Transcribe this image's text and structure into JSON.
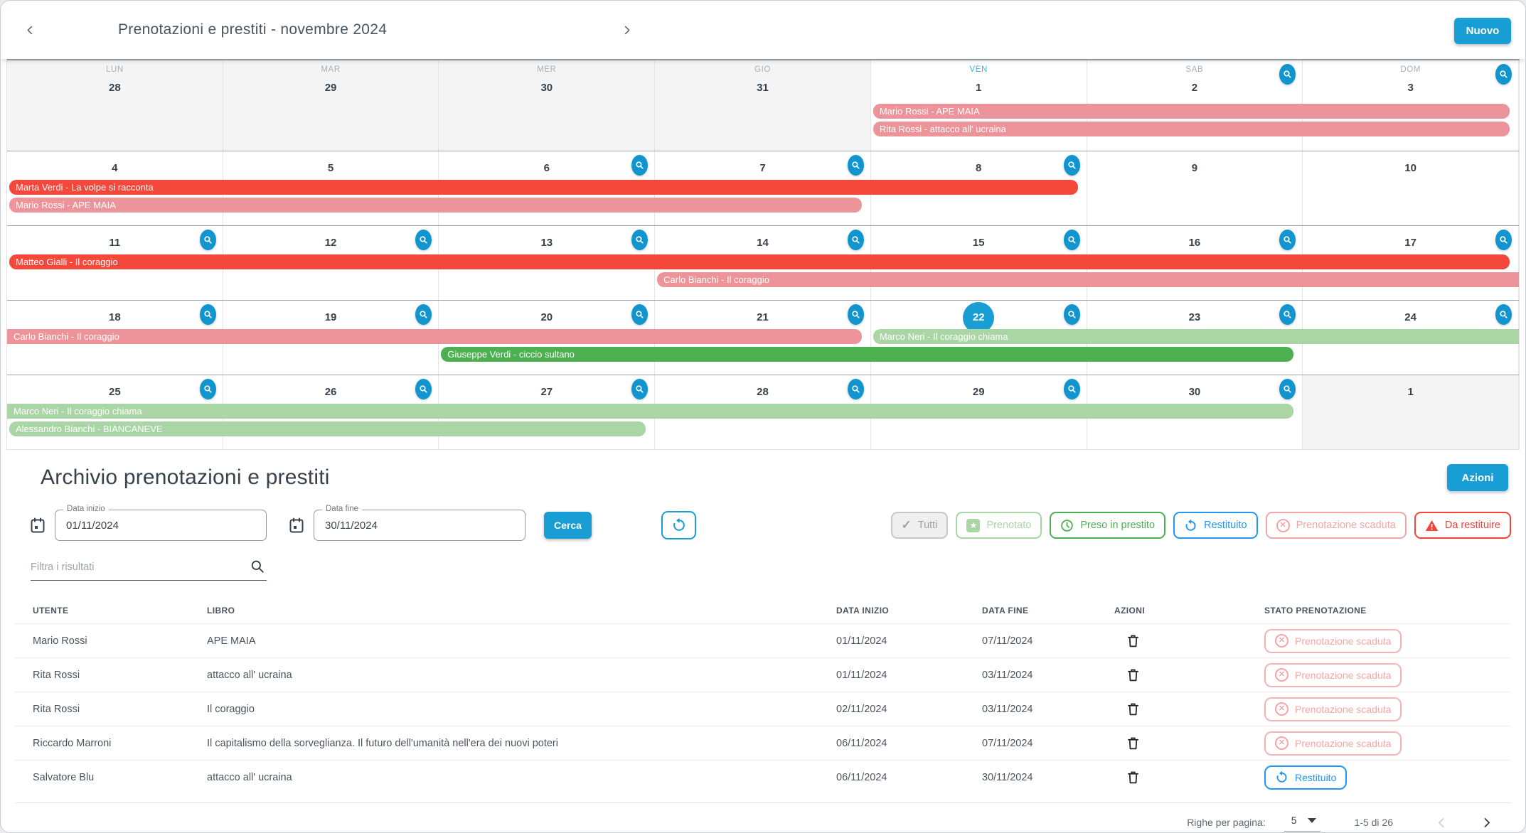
{
  "colors": {
    "red": "#f4483b",
    "pink": "#ec949a",
    "green": "#4caf50",
    "light_green": "#a9d6a4",
    "accent": "#189dd4"
  },
  "icons": {
    "check": "✓",
    "star": "★",
    "x": "✕"
  },
  "header": {
    "title": "Prenotazioni e prestiti - novembre 2024",
    "new_button": "Nuovo"
  },
  "calendar": {
    "weekday_labels": [
      "LUN",
      "MAR",
      "MER",
      "GIO",
      "VEN",
      "SAB",
      "DOM"
    ],
    "weeks": [
      {
        "days": [
          {
            "num": "28",
            "other": true
          },
          {
            "num": "29",
            "other": true
          },
          {
            "num": "30",
            "other": true
          },
          {
            "num": "31",
            "other": true
          },
          {
            "num": "1"
          },
          {
            "num": "2",
            "zoom": true
          },
          {
            "num": "3",
            "zoom": true
          }
        ],
        "events": [
          {
            "row": 0,
            "start": 4,
            "end": 7,
            "label": "Mario Rossi - APE MAIA",
            "color": "pink",
            "rl": true,
            "rr": true
          },
          {
            "row": 1,
            "start": 4,
            "end": 7,
            "label": "Rita Rossi - attacco all' ucraina",
            "color": "pink",
            "rl": true,
            "rr": true
          }
        ]
      },
      {
        "days": [
          {
            "num": "4"
          },
          {
            "num": "5"
          },
          {
            "num": "6",
            "zoom": true
          },
          {
            "num": "7",
            "zoom": true
          },
          {
            "num": "8",
            "zoom": true
          },
          {
            "num": "9"
          },
          {
            "num": "10"
          }
        ],
        "events": [
          {
            "row": 0,
            "start": 0,
            "end": 5,
            "label": "Marta Verdi - La volpe si racconta",
            "color": "red",
            "rl": true,
            "rr": true
          },
          {
            "row": 1,
            "start": 0,
            "end": 4,
            "label": "Mario Rossi - APE MAIA",
            "color": "pink",
            "rl": true,
            "rr": true
          }
        ]
      },
      {
        "days": [
          {
            "num": "11",
            "zoom": true
          },
          {
            "num": "12",
            "zoom": true
          },
          {
            "num": "13",
            "zoom": true
          },
          {
            "num": "14",
            "zoom": true
          },
          {
            "num": "15",
            "zoom": true
          },
          {
            "num": "16",
            "zoom": true
          },
          {
            "num": "17",
            "zoom": true
          }
        ],
        "events": [
          {
            "row": 0,
            "start": 0,
            "end": 7,
            "label": "Matteo Gialli - Il coraggio",
            "color": "red",
            "rl": true,
            "rr": true
          },
          {
            "row": 1,
            "start": 3,
            "end": 7,
            "label": "Carlo Bianchi - Il coraggio",
            "color": "pink",
            "rl": true,
            "rr": false
          }
        ]
      },
      {
        "days": [
          {
            "num": "18",
            "zoom": true
          },
          {
            "num": "19",
            "zoom": true
          },
          {
            "num": "20",
            "zoom": true
          },
          {
            "num": "21",
            "zoom": true
          },
          {
            "num": "22",
            "zoom": true,
            "today": true
          },
          {
            "num": "23",
            "zoom": true
          },
          {
            "num": "24",
            "zoom": true
          }
        ],
        "events": [
          {
            "row": 0,
            "start": 0,
            "end": 4,
            "label": "Carlo Bianchi - Il coraggio",
            "color": "pink",
            "rl": false,
            "rr": true
          },
          {
            "row": 0,
            "start": 4,
            "end": 7,
            "label": "Marco Neri - Il coraggio chiama",
            "color": "light_green",
            "rl": true,
            "rr": false
          },
          {
            "row": 1,
            "start": 2,
            "end": 6,
            "label": "Giuseppe Verdi - ciccio sultano",
            "color": "green",
            "rl": true,
            "rr": true
          }
        ]
      },
      {
        "days": [
          {
            "num": "25",
            "zoom": true
          },
          {
            "num": "26",
            "zoom": true
          },
          {
            "num": "27",
            "zoom": true
          },
          {
            "num": "28",
            "zoom": true
          },
          {
            "num": "29",
            "zoom": true
          },
          {
            "num": "30",
            "zoom": true
          },
          {
            "num": "1",
            "other": true
          }
        ],
        "events": [
          {
            "row": 0,
            "start": 0,
            "end": 6,
            "label": "Marco Neri - Il coraggio chiama",
            "color": "light_green",
            "rl": false,
            "rr": true
          },
          {
            "row": 1,
            "start": 0,
            "end": 3,
            "label": "Alessandro Bianchi - BIANCANEVE",
            "color": "light_green",
            "rl": true,
            "rr": true
          }
        ]
      }
    ]
  },
  "archive": {
    "title": "Archivio prenotazioni e prestiti",
    "actions_button": "Azioni",
    "date_from": {
      "label": "Data inizio",
      "value": "01/11/2024"
    },
    "date_to": {
      "label": "Data fine",
      "value": "30/11/2024"
    },
    "search_button": "Cerca",
    "filter_placeholder": "Filtra i risultati",
    "status_chips": [
      {
        "label": "Tutti",
        "type": "all"
      },
      {
        "label": "Prenotato",
        "type": "booked"
      },
      {
        "label": "Preso in prestito",
        "type": "borrowed"
      },
      {
        "label": "Restituito",
        "type": "returned"
      },
      {
        "label": "Prenotazione scaduta",
        "type": "expired"
      },
      {
        "label": "Da restituire",
        "type": "due"
      }
    ],
    "table": {
      "headers": [
        "UTENTE",
        "LIBRO",
        "DATA INIZIO",
        "DATA FINE",
        "AZIONI",
        "STATO PRENOTAZIONE"
      ],
      "rows": [
        {
          "utente": "Mario Rossi",
          "libro": "APE MAIA",
          "inizio": "01/11/2024",
          "fine": "07/11/2024",
          "stato": "Prenotazione scaduta",
          "stato_type": "expired"
        },
        {
          "utente": "Rita Rossi",
          "libro": "attacco all' ucraina",
          "inizio": "01/11/2024",
          "fine": "03/11/2024",
          "stato": "Prenotazione scaduta",
          "stato_type": "expired"
        },
        {
          "utente": "Rita Rossi",
          "libro": "Il coraggio",
          "inizio": "02/11/2024",
          "fine": "03/11/2024",
          "stato": "Prenotazione scaduta",
          "stato_type": "expired"
        },
        {
          "utente": "Riccardo Marroni",
          "libro": "Il capitalismo della sorveglianza. Il futuro dell'umanità nell'era dei nuovi poteri",
          "inizio": "06/11/2024",
          "fine": "07/11/2024",
          "stato": "Prenotazione scaduta",
          "stato_type": "expired"
        },
        {
          "utente": "Salvatore Blu",
          "libro": "attacco all' ucraina",
          "inizio": "06/11/2024",
          "fine": "30/11/2024",
          "stato": "Restituito",
          "stato_type": "returned"
        }
      ]
    },
    "pagination": {
      "rows_per_page_label": "Righe per pagina:",
      "rows_per_page_value": "5",
      "range": "1-5 di 26"
    }
  }
}
